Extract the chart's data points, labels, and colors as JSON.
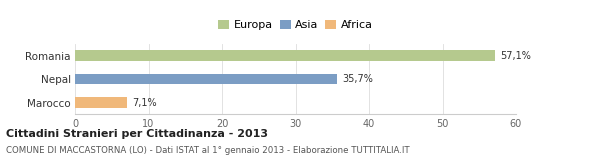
{
  "categories": [
    "Romania",
    "Nepal",
    "Marocco"
  ],
  "values": [
    57.1,
    35.7,
    7.1
  ],
  "labels": [
    "57,1%",
    "35,7%",
    "7,1%"
  ],
  "bar_colors": [
    "#b5c98e",
    "#7b9dc4",
    "#f0b87a"
  ],
  "legend_labels": [
    "Europa",
    "Asia",
    "Africa"
  ],
  "legend_colors": [
    "#b5c98e",
    "#7b9dc4",
    "#f0b87a"
  ],
  "xlim": [
    0,
    60
  ],
  "xticks": [
    0,
    10,
    20,
    30,
    40,
    50,
    60
  ],
  "title": "Cittadini Stranieri per Cittadinanza - 2013",
  "subtitle": "COMUNE DI MACCASTORNA (LO) - Dati ISTAT al 1° gennaio 2013 - Elaborazione TUTTITALIA.IT",
  "background_color": "#ffffff",
  "bar_height": 0.45
}
